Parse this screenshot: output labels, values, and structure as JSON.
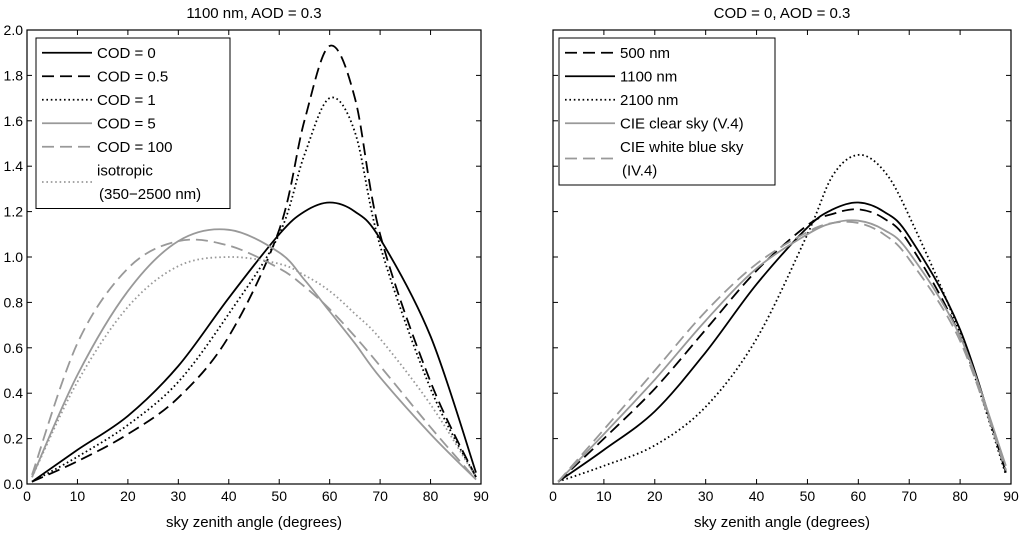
{
  "chart_data": [
    {
      "type": "line",
      "title": "1100 nm, AOD = 0.3",
      "xlabel": "sky zenith angle (degrees)",
      "ylabel": "",
      "xlim": [
        0,
        90
      ],
      "ylim": [
        0,
        2
      ],
      "x_ticks": [
        "0",
        "10",
        "20",
        "30",
        "40",
        "50",
        "60",
        "70",
        "80",
        "90"
      ],
      "y_ticks": [
        "0.0",
        "0.2",
        "0.4",
        "0.6",
        "0.8",
        "1.0",
        "1.2",
        "1.4",
        "1.6",
        "1.8",
        "2.0"
      ],
      "legend_position": "top-left",
      "x": [
        1,
        10,
        20,
        30,
        40,
        50,
        55,
        60,
        65,
        70,
        80,
        89
      ],
      "series": [
        {
          "name": "COD = 0",
          "color": "#000000",
          "style": "solid",
          "values": [
            0.01,
            0.15,
            0.3,
            0.52,
            0.82,
            1.1,
            1.2,
            1.24,
            1.2,
            1.08,
            0.65,
            0.05
          ]
        },
        {
          "name": "COD = 0.5",
          "color": "#000000",
          "style": "dashed",
          "values": [
            0.01,
            0.1,
            0.22,
            0.38,
            0.65,
            1.12,
            1.6,
            1.93,
            1.7,
            1.1,
            0.45,
            0.03
          ]
        },
        {
          "name": "COD = 1",
          "color": "#000000",
          "style": "dotted",
          "values": [
            0.01,
            0.12,
            0.26,
            0.45,
            0.75,
            1.1,
            1.45,
            1.7,
            1.55,
            1.05,
            0.42,
            0.03
          ]
        },
        {
          "name": "COD = 5",
          "color": "#999999",
          "style": "solid",
          "values": [
            0.03,
            0.48,
            0.85,
            1.07,
            1.12,
            1.02,
            0.9,
            0.76,
            0.62,
            0.47,
            0.22,
            0.02
          ]
        },
        {
          "name": "COD = 100",
          "color": "#999999",
          "style": "dashed",
          "values": [
            0.04,
            0.62,
            0.95,
            1.07,
            1.05,
            0.95,
            0.87,
            0.77,
            0.65,
            0.52,
            0.25,
            0.02
          ]
        },
        {
          "name": "isotropic (350−2500 nm)",
          "color": "#999999",
          "style": "dotted",
          "values": [
            0.03,
            0.45,
            0.78,
            0.96,
            1.0,
            0.97,
            0.92,
            0.85,
            0.75,
            0.64,
            0.35,
            0.03
          ]
        }
      ],
      "legend": {
        "entries": [
          {
            "lines": [
              "COD = 0"
            ],
            "color": "#000000",
            "style": "solid"
          },
          {
            "lines": [
              "COD = 0.5"
            ],
            "color": "#000000",
            "style": "dashed"
          },
          {
            "lines": [
              "COD = 1"
            ],
            "color": "#000000",
            "style": "dotted"
          },
          {
            "lines": [
              "COD = 5"
            ],
            "color": "#999999",
            "style": "solid"
          },
          {
            "lines": [
              "COD = 100"
            ],
            "color": "#999999",
            "style": "dashed"
          },
          {
            "lines": [
              "isotropic",
              "(350−2500 nm)"
            ],
            "color": "#999999",
            "style": "dotted"
          }
        ]
      }
    },
    {
      "type": "line",
      "title": "COD = 0, AOD = 0.3",
      "xlabel": "sky zenith angle (degrees)",
      "ylabel": "",
      "xlim": [
        0,
        90
      ],
      "ylim": [
        0,
        2
      ],
      "x_ticks": [
        "0",
        "10",
        "20",
        "30",
        "40",
        "50",
        "60",
        "70",
        "80",
        "90"
      ],
      "y_ticks": [],
      "legend_position": "top-left",
      "x": [
        1,
        10,
        20,
        30,
        40,
        50,
        55,
        60,
        65,
        70,
        80,
        89
      ],
      "series": [
        {
          "name": "500 nm",
          "color": "#000000",
          "style": "dashed",
          "values": [
            0.01,
            0.2,
            0.42,
            0.68,
            0.94,
            1.14,
            1.19,
            1.21,
            1.17,
            1.06,
            0.65,
            0.06
          ]
        },
        {
          "name": "1100 nm",
          "color": "#000000",
          "style": "solid",
          "values": [
            0.01,
            0.15,
            0.32,
            0.58,
            0.88,
            1.13,
            1.21,
            1.24,
            1.2,
            1.09,
            0.68,
            0.05
          ]
        },
        {
          "name": "2100 nm",
          "color": "#000000",
          "style": "dotted",
          "values": [
            0.01,
            0.08,
            0.17,
            0.34,
            0.64,
            1.1,
            1.36,
            1.45,
            1.38,
            1.18,
            0.66,
            0.04
          ]
        },
        {
          "name": "CIE clear sky (V.4)",
          "color": "#999999",
          "style": "solid",
          "values": [
            0.01,
            0.22,
            0.46,
            0.72,
            0.95,
            1.1,
            1.15,
            1.16,
            1.12,
            1.02,
            0.65,
            0.08
          ]
        },
        {
          "name": "CIE white blue sky (IV.4)",
          "color": "#999999",
          "style": "dashed",
          "values": [
            0.01,
            0.24,
            0.5,
            0.76,
            0.97,
            1.11,
            1.15,
            1.15,
            1.1,
            0.99,
            0.63,
            0.06
          ]
        }
      ],
      "legend": {
        "entries": [
          {
            "lines": [
              "500 nm"
            ],
            "color": "#000000",
            "style": "dashed"
          },
          {
            "lines": [
              "1100 nm"
            ],
            "color": "#000000",
            "style": "solid"
          },
          {
            "lines": [
              "2100 nm"
            ],
            "color": "#000000",
            "style": "dotted"
          },
          {
            "lines": [
              "CIE clear sky (V.4)"
            ],
            "color": "#999999",
            "style": "solid"
          },
          {
            "lines": [
              "CIE white blue sky",
              "(IV.4)"
            ],
            "color": "#999999",
            "style": "dashed"
          }
        ]
      }
    }
  ]
}
